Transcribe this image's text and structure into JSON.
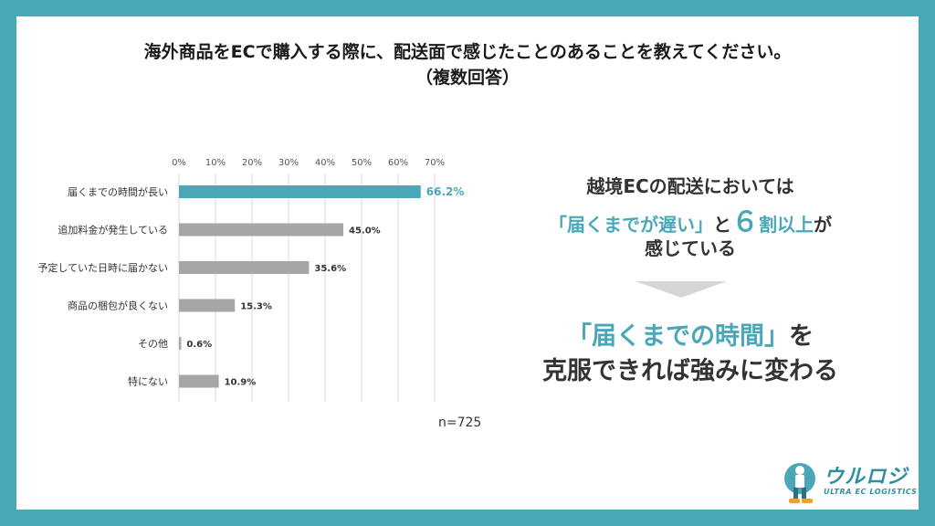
{
  "title": "海外商品をECで購入する際に、配送面で感じたことのあることを教えてください。",
  "subtitle": "（複数回答）",
  "chart_data": {
    "type": "bar",
    "orientation": "horizontal",
    "categories": [
      "届くまでの時間が長い",
      "追加料金が発生している",
      "予定していた日時に届かない",
      "商品の梱包が良くない",
      "その他",
      "特にない"
    ],
    "values": [
      66.2,
      45.0,
      35.6,
      15.3,
      0.6,
      10.9
    ],
    "value_labels": [
      "66.2%",
      "45.0%",
      "35.6%",
      "15.3%",
      "0.6%",
      "10.9%"
    ],
    "ticks": [
      "0%",
      "10%",
      "20%",
      "30%",
      "40%",
      "50%",
      "60%",
      "70%"
    ],
    "xlim": [
      0,
      70
    ],
    "highlight_index": 0,
    "colors": {
      "highlight": "#4aa7b8",
      "bar": "#a6a6a6",
      "grid": "#d9d9d9"
    },
    "grid": true
  },
  "sample_note": "n=725",
  "right_panel": {
    "line1": "越境ECの配送においては",
    "line2_a": "「届くまでが遅い」",
    "line2_b": "と",
    "line2_c": "６",
    "line2_d": "割",
    "line2_e": "以上",
    "line2_f": "が",
    "line3": "感じている",
    "arrow_icon": "down-triangle-icon",
    "conclusion_line1_a": "「届くまでの時間」",
    "conclusion_line1_b": "を",
    "conclusion_line2": "克服できれば強みに変わる"
  },
  "logo": {
    "name": "ウルロジ",
    "tagline": "ULTRA EC LOGISTICS"
  }
}
